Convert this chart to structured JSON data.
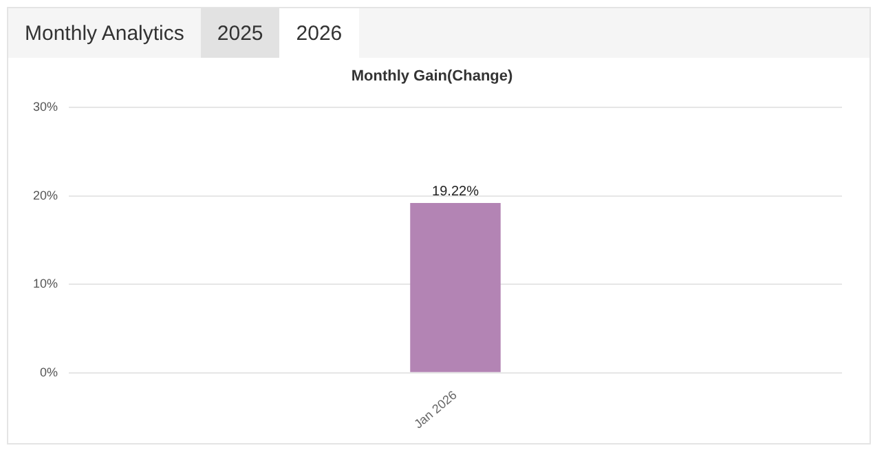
{
  "chart_data": {
    "type": "bar",
    "title": "Monthly Gain(Change)",
    "annotations": [
      "Monthly Analytics",
      "2025",
      "2026"
    ],
    "categories": [
      "Jan 2026"
    ],
    "values": [
      19.22
    ],
    "value_labels": [
      "19.22%"
    ],
    "color": "#b384b4",
    "ylim": [
      0,
      30
    ],
    "yticks": [
      {
        "value": 0,
        "label": "0%"
      },
      {
        "value": 10,
        "label": "10%"
      },
      {
        "value": 20,
        "label": "20%"
      },
      {
        "value": 30,
        "label": "30%"
      }
    ],
    "grid": true,
    "legend": false
  }
}
